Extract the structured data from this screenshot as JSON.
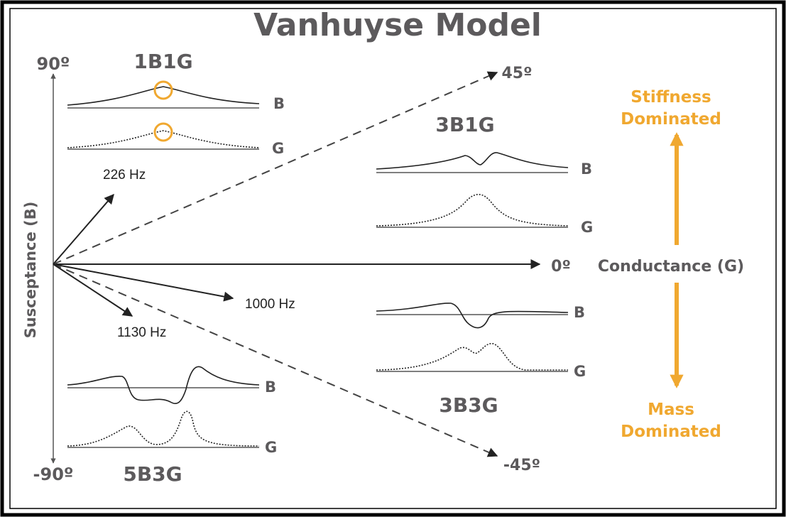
{
  "title": "Vanhuyse Model",
  "axes": {
    "top": "90º",
    "bottom": "-90º",
    "upper_diagonal": "45º",
    "lower_diagonal": "-45º",
    "horizontal": "0º",
    "x_label": "Conductance (G)",
    "y_label": "Susceptance (B)"
  },
  "patterns": [
    {
      "label": "1B1G",
      "curves": [
        "B",
        "G"
      ]
    },
    {
      "label": "3B1G",
      "curves": [
        "B",
        "G"
      ]
    },
    {
      "label": "3B3G",
      "curves": [
        "B",
        "G"
      ]
    },
    {
      "label": "5B3G",
      "curves": [
        "B",
        "G"
      ]
    }
  ],
  "frequencies": [
    "226 Hz",
    "1000 Hz",
    "1130 Hz"
  ],
  "regions": [
    {
      "lines": [
        "Stiffness",
        "Dominated"
      ]
    },
    {
      "lines": [
        "Mass",
        "Dominated"
      ]
    }
  ]
}
